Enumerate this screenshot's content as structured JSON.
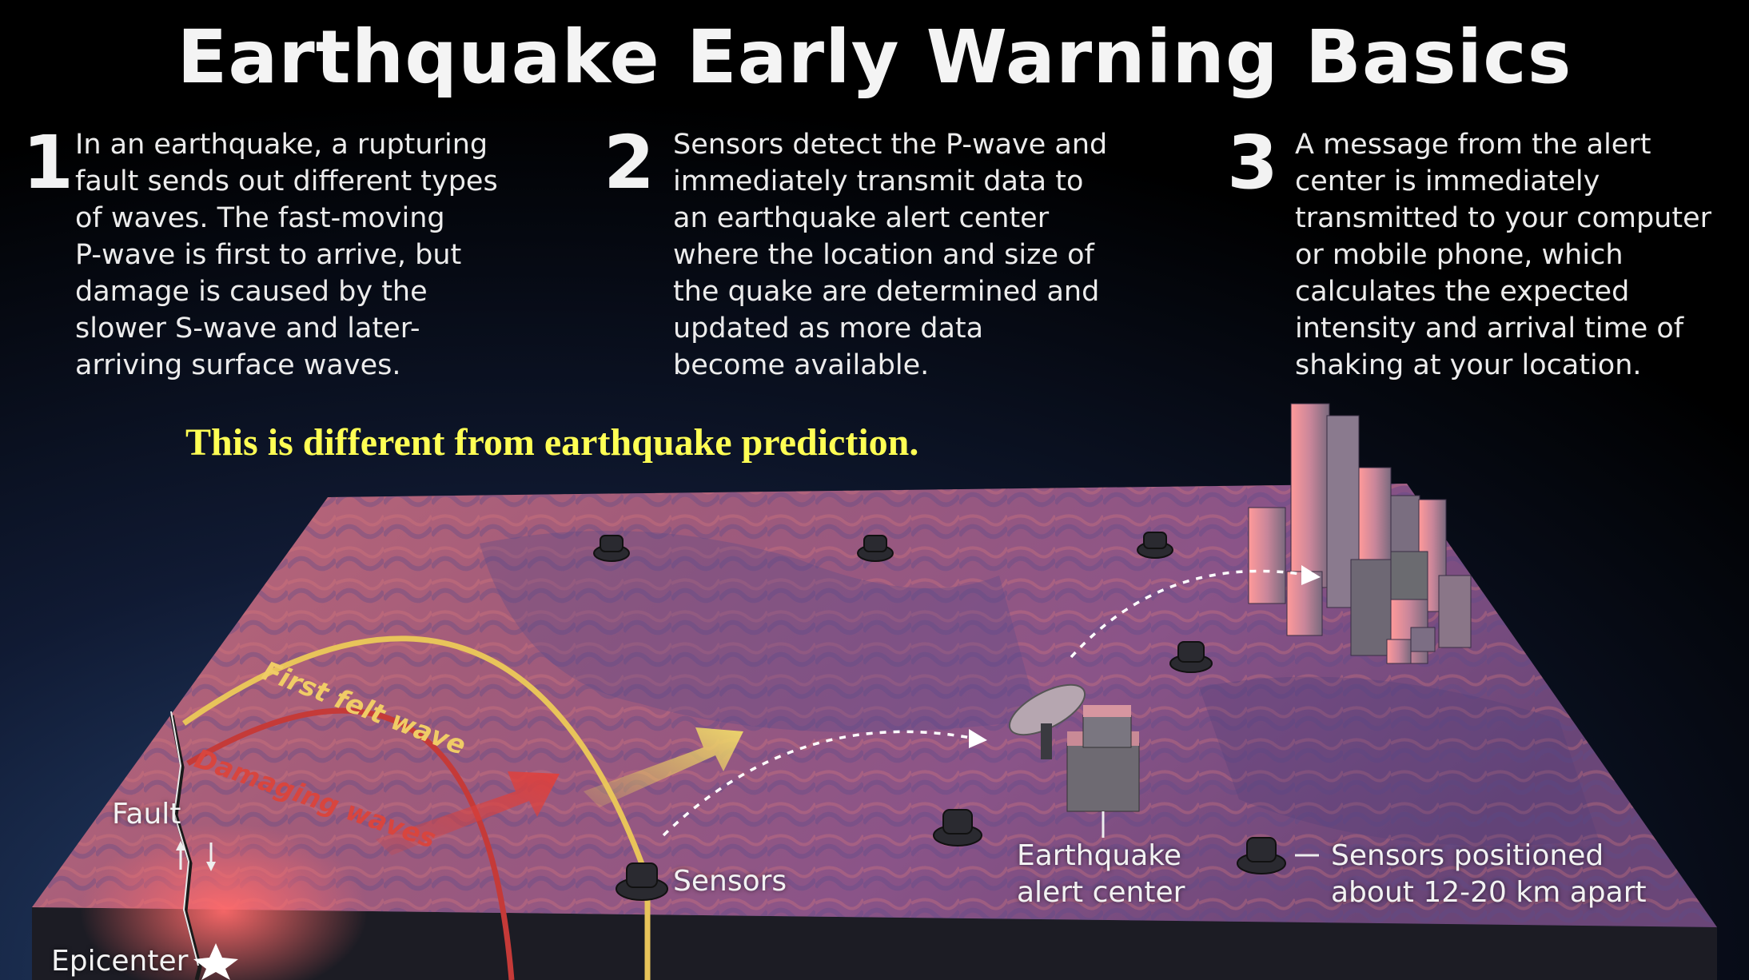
{
  "title": "Earthquake Early Warning Basics",
  "steps": [
    {
      "number": "1",
      "text": "In an earthquake, a rupturing\nfault sends out different types\nof waves. The fast-moving\nP-wave is first to arrive, but\ndamage is caused by the\nslower S-wave and later-\narriving surface waves."
    },
    {
      "number": "2",
      "text": "Sensors detect the P-wave and\nimmediately transmit data to\nan earthquake alert center\nwhere the location and size of\nthe quake are determined and\nupdated as more data\nbecome available."
    },
    {
      "number": "3",
      "text": "A message from the alert\ncenter is immediately\ntransmitted to your computer\nor mobile phone, which\ncalculates the expected\nintensity and arrival time of\nshaking at your location."
    }
  ],
  "note": "This is different from earthquake prediction.",
  "labels": {
    "first_felt_wave": "First felt wave",
    "damaging_waves": "Damaging waves",
    "fault": "Fault",
    "epicenter": "Epicenter",
    "sensors": "Sensors",
    "alert_center": "Earthquake\nalert center",
    "sensors_apart": "Sensors positioned\nabout 12-20 km apart"
  },
  "colors": {
    "note_text": "#ffff54",
    "first_felt_wave": "#e8c45a",
    "damaging_waves": "#d4423e"
  }
}
